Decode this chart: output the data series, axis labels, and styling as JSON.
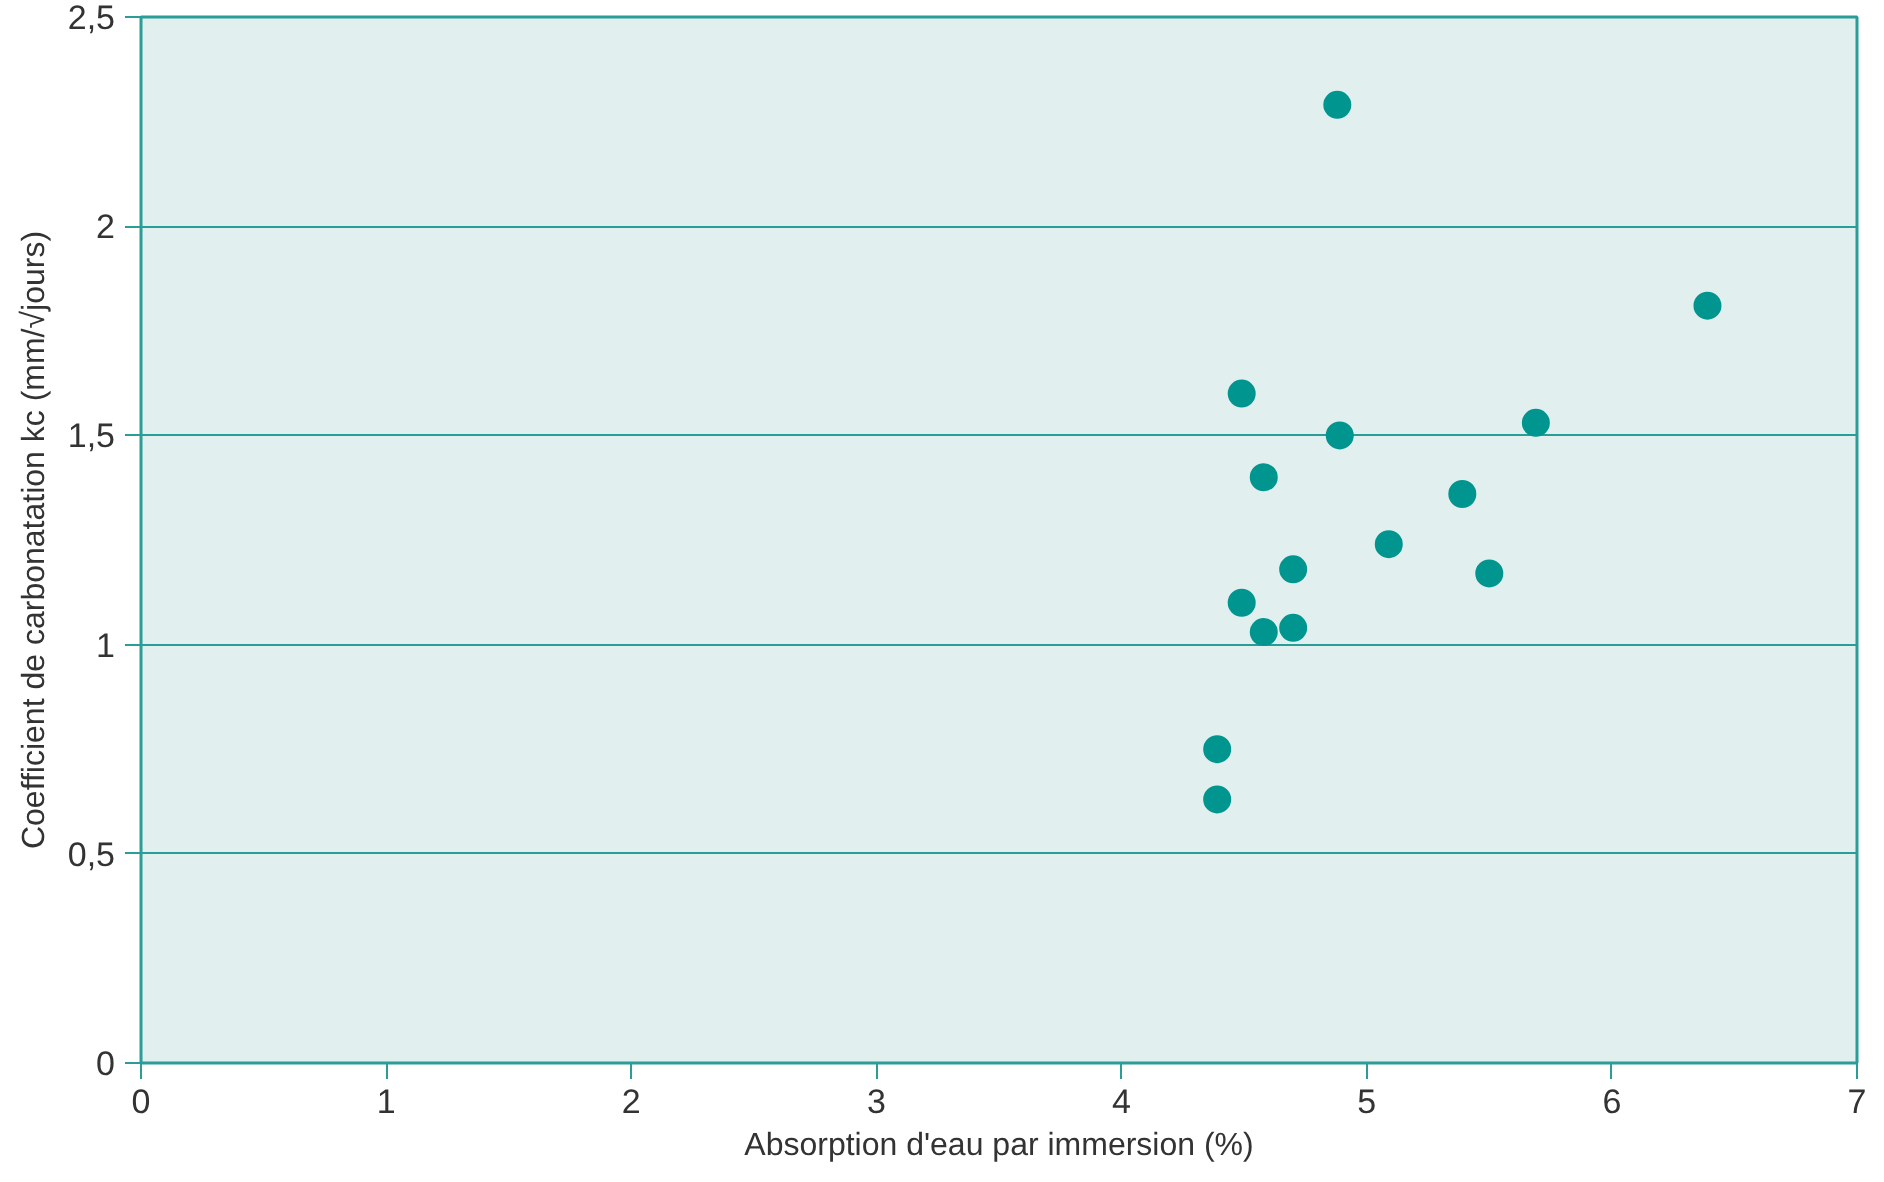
{
  "chart_data": {
    "type": "scatter",
    "xlabel": "Absorption d'eau par immersion (%)",
    "ylabel": "Coefficient de carbonatation kc (mm/√jours)",
    "x": [
      4.88,
      6.39,
      4.49,
      4.89,
      5.69,
      4.58,
      5.39,
      5.09,
      4.7,
      5.5,
      4.49,
      4.58,
      4.7,
      4.39,
      4.39
    ],
    "values": [
      2.29,
      1.81,
      1.6,
      1.5,
      1.53,
      1.4,
      1.36,
      1.24,
      1.18,
      1.17,
      1.1,
      1.03,
      1.04,
      0.75,
      0.63
    ],
    "color": "#00968f",
    "marker": "circle",
    "grid": "y",
    "xlim": [
      0,
      7
    ],
    "xticks": [
      0,
      1,
      2,
      3,
      4,
      5,
      6,
      7
    ],
    "ylim": [
      0,
      2.5
    ],
    "yticks": [
      {
        "value": 0,
        "label": "0"
      },
      {
        "value": 0.5,
        "label": "0,5"
      },
      {
        "value": 1,
        "label": "1"
      },
      {
        "value": 1.5,
        "label": "1,5"
      },
      {
        "value": 2,
        "label": "2"
      },
      {
        "value": 2.5,
        "label": "2,5"
      }
    ]
  }
}
